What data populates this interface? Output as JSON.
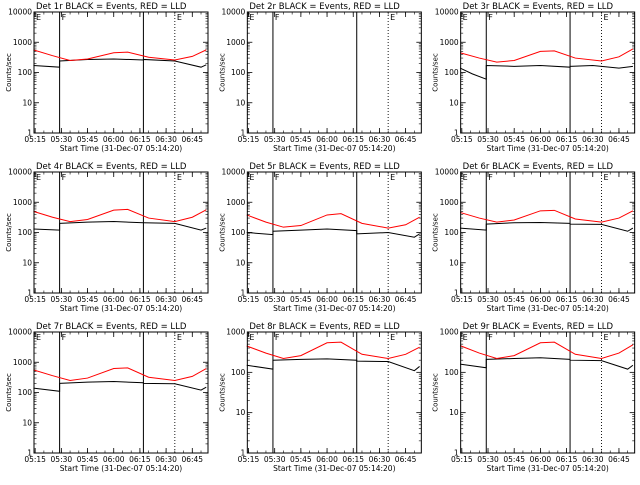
{
  "figure": {
    "background": "#ffffff",
    "panels": [
      {
        "title": "Det 1r BLACK = Events, RED = LLD",
        "xlabel": "Start Time (31-Dec-07 05:14:20)",
        "ylabel": "Counts/sec",
        "flags": [
          "E",
          "F",
          "E"
        ]
      },
      {
        "title": "Det 2r BLACK = Events, RED = LLD",
        "xlabel": "Start Time (31-Dec-07 05:14:20)",
        "ylabel": "Counts/sec",
        "flags": [
          "E",
          "F",
          "E"
        ]
      },
      {
        "title": "Det 3r BLACK = Events, RED = LLD",
        "xlabel": "Start Time (31-Dec-07 05:14:20)",
        "ylabel": "Counts/sec",
        "flags": [
          "E",
          "F",
          "E"
        ]
      },
      {
        "title": "Det 4r BLACK = Events, RED = LLD",
        "xlabel": "Start Time (31-Dec-07 05:14:20)",
        "ylabel": "Counts/sec",
        "flags": [
          "E",
          "F",
          "E"
        ]
      },
      {
        "title": "Det 5r BLACK = Events, RED = LLD",
        "xlabel": "Start Time (31-Dec-07 05:14:20)",
        "ylabel": "Counts/sec",
        "flags": [
          "E",
          "F",
          "E"
        ]
      },
      {
        "title": "Det 6r BLACK = Events, RED = LLD",
        "xlabel": "Start Time (31-Dec-07 05:14:20)",
        "ylabel": "Counts/sec",
        "flags": [
          "E",
          "F",
          "E"
        ]
      },
      {
        "title": "Det 7r BLACK = Events, RED = LLD",
        "xlabel": "Start Time (31-Dec-07 05:14:20)",
        "ylabel": "Counts/sec",
        "flags": [
          "E",
          "F",
          "E"
        ]
      },
      {
        "title": "Det 8r BLACK = Events, RED = LLD",
        "xlabel": "Start Time (31-Dec-07 05:14:20)",
        "ylabel": "Counts/sec",
        "flags": [
          "E",
          "F",
          "E"
        ]
      },
      {
        "title": "Det 9r BLACK = Events, RED = LLD",
        "xlabel": "Start Time (31-Dec-07 05:14:20)",
        "ylabel": "Counts/sec",
        "flags": [
          "E",
          "F",
          "E"
        ]
      }
    ]
  },
  "chart_data": [
    {
      "type": "line",
      "panel": "Det 1r",
      "title": "Det 1r BLACK = Events, RED = LLD",
      "xlabel": "Start Time (31-Dec-07 05:14:20)",
      "ylabel": "Counts/sec",
      "yscale": "log",
      "xlim": [
        "05:14:20",
        "06:54:00"
      ],
      "ylim": [
        1,
        10000
      ],
      "xticks": [
        "05:15",
        "05:30",
        "05:45",
        "06:00",
        "06:15",
        "06:30",
        "06:45"
      ],
      "yticks": [
        "1",
        "10",
        "100",
        "1000",
        "10000"
      ],
      "solid_lines": [
        "05:29",
        "06:17"
      ],
      "dotted_lines": [
        "06:35"
      ],
      "colors": {
        "events": "#000000",
        "lld": "#ff0000"
      },
      "series": [
        {
          "name": "Events",
          "color": "#000000",
          "x": [
            "05:14",
            "05:29",
            "05:29",
            "05:45",
            "06:00",
            "06:17",
            "06:17",
            "06:35",
            "06:50",
            "06:53"
          ],
          "y": [
            170,
            150,
            240,
            270,
            280,
            260,
            270,
            240,
            150,
            180
          ]
        },
        {
          "name": "LLD",
          "color": "#ff0000",
          "x": [
            "05:14",
            "05:25",
            "05:35",
            "05:45",
            "06:00",
            "06:08",
            "06:20",
            "06:35",
            "06:45",
            "06:53"
          ],
          "y": [
            560,
            360,
            250,
            280,
            450,
            470,
            320,
            260,
            340,
            560
          ]
        }
      ]
    },
    {
      "type": "line",
      "panel": "Det 2r",
      "title": "Det 2r BLACK = Events, RED = LLD",
      "xlabel": "Start Time (31-Dec-07 05:14:20)",
      "ylabel": "Counts/sec",
      "yscale": "log",
      "xlim": [
        "05:14:20",
        "06:54:00"
      ],
      "ylim": [
        1,
        10000
      ],
      "xticks": [
        "05:15",
        "05:30",
        "05:45",
        "06:00",
        "06:15",
        "06:30",
        "06:45"
      ],
      "yticks": [
        "1",
        "10",
        "100",
        "1000",
        "10000"
      ],
      "solid_lines": [
        "05:29",
        "06:17"
      ],
      "dotted_lines": [
        "06:35"
      ],
      "colors": {
        "events": "#000000",
        "lld": "#ff0000"
      },
      "series": []
    },
    {
      "type": "line",
      "panel": "Det 3r",
      "title": "Det 3r BLACK = Events, RED = LLD",
      "xlabel": "Start Time (31-Dec-07 05:14:20)",
      "ylabel": "Counts/sec",
      "yscale": "log",
      "xlim": [
        "05:14:20",
        "06:54:00"
      ],
      "ylim": [
        1,
        10000
      ],
      "xticks": [
        "05:15",
        "05:30",
        "05:45",
        "06:00",
        "06:15",
        "06:30",
        "06:45"
      ],
      "yticks": [
        "1",
        "10",
        "100",
        "1000",
        "10000"
      ],
      "solid_lines": [
        "05:29",
        "06:17"
      ],
      "dotted_lines": [
        "06:35"
      ],
      "colors": {
        "events": "#000000",
        "lld": "#ff0000"
      },
      "series": [
        {
          "name": "Events",
          "color": "#000000",
          "x": [
            "05:14",
            "05:21",
            "05:29",
            "05:29",
            "05:45",
            "06:00",
            "06:17",
            "06:17",
            "06:30",
            "06:45",
            "06:53"
          ],
          "y": [
            140,
            90,
            60,
            170,
            160,
            170,
            150,
            160,
            170,
            140,
            160
          ]
        },
        {
          "name": "LLD",
          "color": "#ff0000",
          "x": [
            "05:14",
            "05:25",
            "05:35",
            "05:45",
            "06:00",
            "06:08",
            "06:20",
            "06:35",
            "06:45",
            "06:53"
          ],
          "y": [
            450,
            300,
            220,
            250,
            500,
            520,
            300,
            240,
            330,
            600
          ]
        }
      ]
    },
    {
      "type": "line",
      "panel": "Det 4r",
      "title": "Det 4r BLACK = Events, RED = LLD",
      "xlabel": "Start Time (31-Dec-07 05:14:20)",
      "ylabel": "Counts/sec",
      "yscale": "log",
      "xlim": [
        "05:14:20",
        "06:54:00"
      ],
      "ylim": [
        1,
        10000
      ],
      "xticks": [
        "05:15",
        "05:30",
        "05:45",
        "06:00",
        "06:15",
        "06:30",
        "06:45"
      ],
      "yticks": [
        "1",
        "10",
        "100",
        "1000",
        "10000"
      ],
      "solid_lines": [
        "05:29",
        "06:17"
      ],
      "dotted_lines": [
        "06:35"
      ],
      "colors": {
        "events": "#000000",
        "lld": "#ff0000"
      },
      "series": [
        {
          "name": "Events",
          "color": "#000000",
          "x": [
            "05:14",
            "05:29",
            "05:29",
            "05:45",
            "06:00",
            "06:17",
            "06:17",
            "06:35",
            "06:50",
            "06:53"
          ],
          "y": [
            130,
            120,
            200,
            220,
            230,
            210,
            210,
            200,
            120,
            140
          ]
        },
        {
          "name": "LLD",
          "color": "#ff0000",
          "x": [
            "05:14",
            "05:25",
            "05:35",
            "05:45",
            "06:00",
            "06:08",
            "06:20",
            "06:35",
            "06:45",
            "06:53"
          ],
          "y": [
            500,
            320,
            230,
            270,
            550,
            580,
            300,
            230,
            320,
            560
          ]
        }
      ]
    },
    {
      "type": "line",
      "panel": "Det 5r",
      "title": "Det 5r BLACK = Events, RED = LLD",
      "xlabel": "Start Time (31-Dec-07 05:14:20)",
      "ylabel": "Counts/sec",
      "yscale": "log",
      "xlim": [
        "05:14:20",
        "06:54:00"
      ],
      "ylim": [
        1,
        10000
      ],
      "xticks": [
        "05:15",
        "05:30",
        "05:45",
        "06:00",
        "06:15",
        "06:30",
        "06:45"
      ],
      "yticks": [
        "1",
        "10",
        "100",
        "1000",
        "10000"
      ],
      "solid_lines": [
        "05:29",
        "06:17"
      ],
      "dotted_lines": [
        "06:35"
      ],
      "colors": {
        "events": "#000000",
        "lld": "#ff0000"
      },
      "series": [
        {
          "name": "Events",
          "color": "#000000",
          "x": [
            "05:14",
            "05:29",
            "05:29",
            "05:45",
            "06:00",
            "06:17",
            "06:17",
            "06:35",
            "06:50",
            "06:53"
          ],
          "y": [
            100,
            85,
            110,
            120,
            130,
            115,
            90,
            100,
            70,
            90
          ]
        },
        {
          "name": "LLD",
          "color": "#ff0000",
          "x": [
            "05:14",
            "05:25",
            "05:35",
            "05:45",
            "06:00",
            "06:08",
            "06:20",
            "06:35",
            "06:45",
            "06:53"
          ],
          "y": [
            380,
            220,
            150,
            170,
            380,
            420,
            200,
            140,
            180,
            320
          ]
        }
      ]
    },
    {
      "type": "line",
      "panel": "Det 6r",
      "title": "Det 6r BLACK = Events, RED = LLD",
      "xlabel": "Start Time (31-Dec-07 05:14:20)",
      "ylabel": "Counts/sec",
      "yscale": "log",
      "xlim": [
        "05:14:20",
        "06:54:00"
      ],
      "ylim": [
        1,
        10000
      ],
      "xticks": [
        "05:15",
        "05:30",
        "05:45",
        "06:00",
        "06:15",
        "06:30",
        "06:45"
      ],
      "yticks": [
        "1",
        "10",
        "100",
        "1000",
        "10000"
      ],
      "solid_lines": [
        "05:29",
        "06:17"
      ],
      "dotted_lines": [
        "06:35"
      ],
      "colors": {
        "events": "#000000",
        "lld": "#ff0000"
      },
      "series": [
        {
          "name": "Events",
          "color": "#000000",
          "x": [
            "05:14",
            "05:29",
            "05:29",
            "05:45",
            "06:00",
            "06:17",
            "06:17",
            "06:35",
            "06:50",
            "06:53"
          ],
          "y": [
            140,
            120,
            190,
            210,
            215,
            200,
            190,
            185,
            110,
            140
          ]
        },
        {
          "name": "LLD",
          "color": "#ff0000",
          "x": [
            "05:14",
            "05:25",
            "05:35",
            "05:45",
            "06:00",
            "06:08",
            "06:20",
            "06:35",
            "06:45",
            "06:53"
          ],
          "y": [
            460,
            300,
            220,
            260,
            520,
            540,
            280,
            220,
            300,
            520
          ]
        }
      ]
    },
    {
      "type": "line",
      "panel": "Det 7r",
      "title": "Det 7r BLACK = Events, RED = LLD",
      "xlabel": "Start Time (31-Dec-07 05:14:20)",
      "ylabel": "Counts/sec",
      "yscale": "log",
      "xlim": [
        "05:14:20",
        "06:54:00"
      ],
      "ylim": [
        1,
        10000
      ],
      "xticks": [
        "05:15",
        "05:30",
        "05:45",
        "06:00",
        "06:15",
        "06:30",
        "06:45"
      ],
      "yticks": [
        "1",
        "10",
        "100",
        "1000",
        "10000"
      ],
      "solid_lines": [
        "05:29",
        "06:17"
      ],
      "dotted_lines": [
        "06:35"
      ],
      "colors": {
        "events": "#000000",
        "lld": "#ff0000"
      },
      "series": [
        {
          "name": "Events",
          "color": "#000000",
          "x": [
            "05:14",
            "05:29",
            "05:29",
            "05:45",
            "06:00",
            "06:17",
            "06:17",
            "06:35",
            "06:50",
            "06:53"
          ],
          "y": [
            140,
            110,
            200,
            220,
            230,
            210,
            200,
            195,
            120,
            150
          ]
        },
        {
          "name": "LLD",
          "color": "#ff0000",
          "x": [
            "05:14",
            "05:25",
            "05:35",
            "05:45",
            "06:00",
            "06:08",
            "06:20",
            "06:35",
            "06:45",
            "06:53"
          ],
          "y": [
            560,
            360,
            250,
            300,
            620,
            650,
            320,
            250,
            340,
            620
          ]
        }
      ]
    },
    {
      "type": "line",
      "panel": "Det 8r",
      "title": "Det 8r BLACK = Events, RED = LLD",
      "xlabel": "Start Time (31-Dec-07 05:14:20)",
      "ylabel": "Counts/sec",
      "yscale": "log",
      "xlim": [
        "05:14:20",
        "06:54:00"
      ],
      "ylim": [
        1,
        1000
      ],
      "xticks": [
        "05:15",
        "05:30",
        "05:45",
        "06:00",
        "06:15",
        "06:30",
        "06:45"
      ],
      "yticks": [
        "1",
        "10",
        "100",
        "1000"
      ],
      "solid_lines": [
        "05:29",
        "06:17"
      ],
      "dotted_lines": [
        "06:35"
      ],
      "colors": {
        "events": "#000000",
        "lld": "#ff0000"
      },
      "series": [
        {
          "name": "Events",
          "color": "#000000",
          "x": [
            "05:14",
            "05:29",
            "05:29",
            "05:45",
            "06:00",
            "06:17",
            "06:17",
            "06:35",
            "06:50",
            "06:53"
          ],
          "y": [
            150,
            120,
            200,
            210,
            215,
            200,
            190,
            185,
            110,
            140
          ]
        },
        {
          "name": "LLD",
          "color": "#ff0000",
          "x": [
            "05:14",
            "05:25",
            "05:35",
            "05:45",
            "06:00",
            "06:08",
            "06:20",
            "06:35",
            "06:45",
            "06:53"
          ],
          "y": [
            450,
            300,
            220,
            260,
            540,
            560,
            280,
            220,
            280,
            420
          ]
        }
      ]
    },
    {
      "type": "line",
      "panel": "Det 9r",
      "title": "Det 9r BLACK = Events, RED = LLD",
      "xlabel": "Start Time (31-Dec-07 05:14:20)",
      "ylabel": "Counts/sec",
      "yscale": "log",
      "xlim": [
        "05:14:20",
        "06:54:00"
      ],
      "ylim": [
        1,
        1000
      ],
      "xticks": [
        "05:15",
        "05:30",
        "05:45",
        "06:00",
        "06:15",
        "06:30",
        "06:45"
      ],
      "yticks": [
        "1",
        "10",
        "100",
        "1000"
      ],
      "solid_lines": [
        "05:29",
        "06:17"
      ],
      "dotted_lines": [
        "06:35"
      ],
      "colors": {
        "events": "#000000",
        "lld": "#ff0000"
      },
      "series": [
        {
          "name": "Events",
          "color": "#000000",
          "x": [
            "05:14",
            "05:29",
            "05:29",
            "05:45",
            "06:00",
            "06:17",
            "06:17",
            "06:35",
            "06:50",
            "06:53"
          ],
          "y": [
            160,
            130,
            210,
            220,
            230,
            210,
            200,
            195,
            120,
            150
          ]
        },
        {
          "name": "LLD",
          "color": "#ff0000",
          "x": [
            "05:14",
            "05:25",
            "05:35",
            "05:45",
            "06:00",
            "06:08",
            "06:20",
            "06:35",
            "06:45",
            "06:53"
          ],
          "y": [
            460,
            300,
            220,
            260,
            540,
            560,
            280,
            220,
            300,
            480
          ]
        }
      ]
    }
  ]
}
